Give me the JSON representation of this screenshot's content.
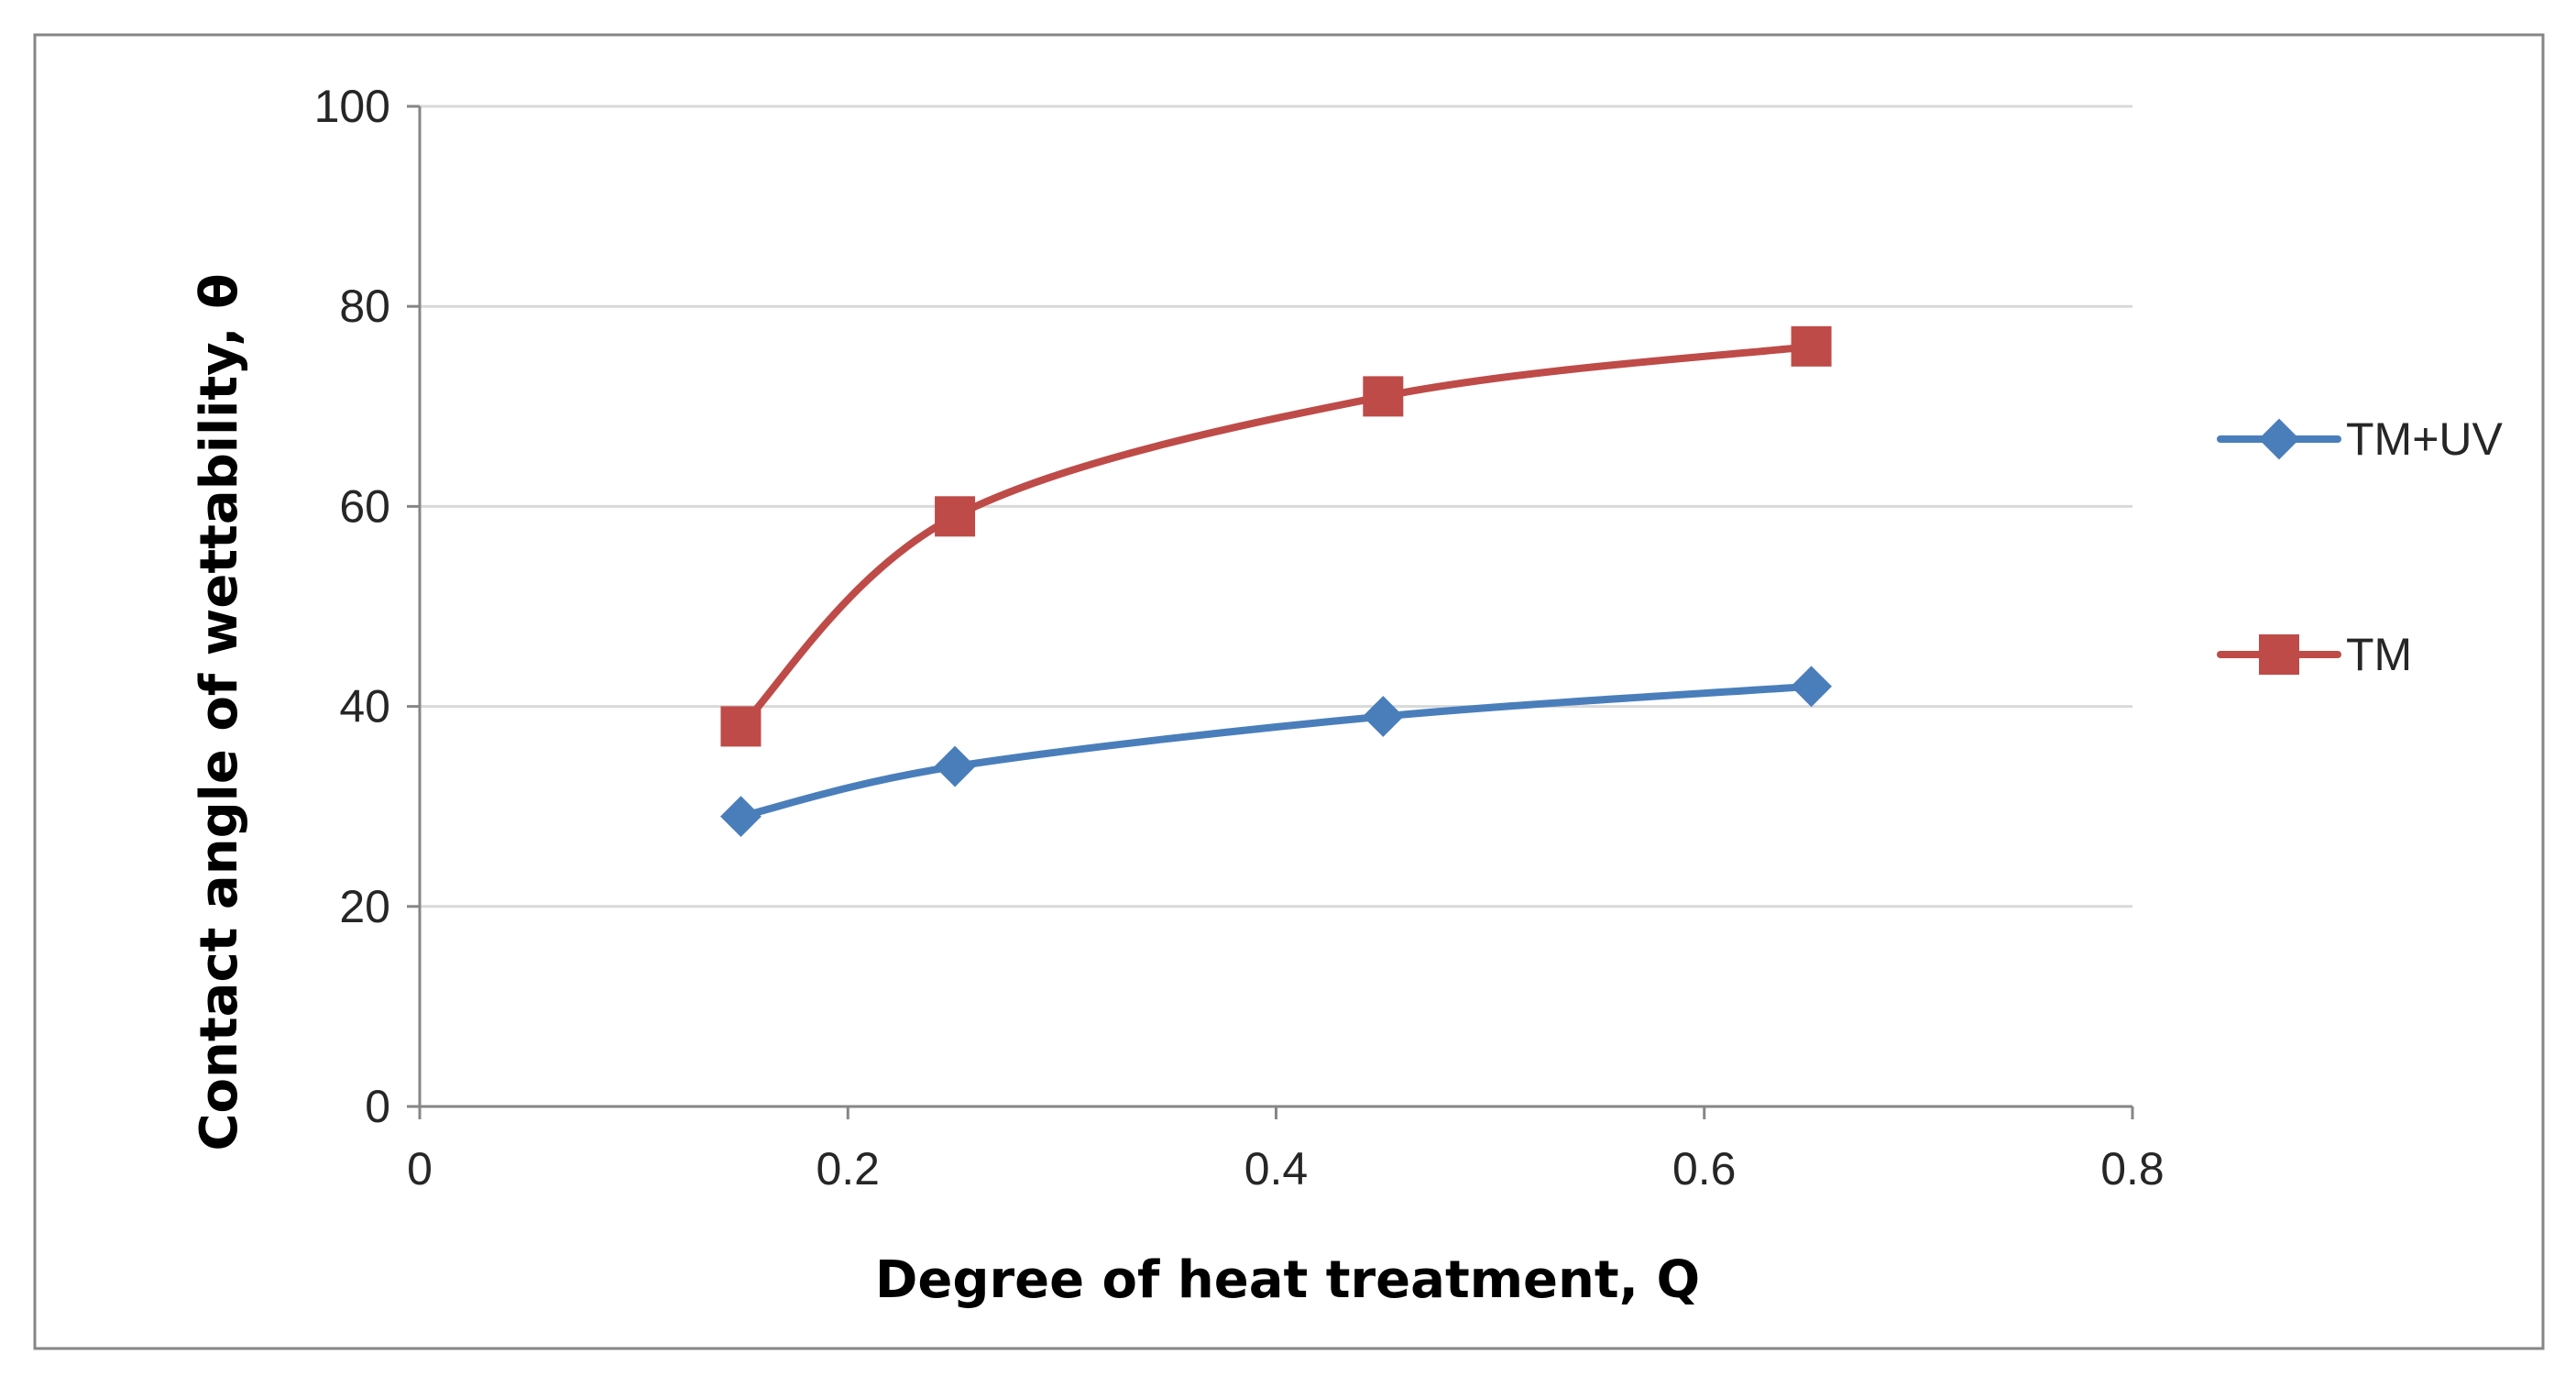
{
  "chart_data": {
    "type": "line",
    "title": "",
    "xlabel": "Degree of heat treatment, Q",
    "ylabel": "Contact angle of wettability, θ",
    "xlim": [
      0,
      0.8
    ],
    "ylim": [
      0,
      100
    ],
    "x_ticks": [
      0,
      0.2,
      0.4,
      0.6,
      0.8
    ],
    "x_tick_labels": [
      "0",
      "0.2",
      "0.4",
      "0.6",
      "0.8"
    ],
    "y_ticks": [
      0,
      20,
      40,
      60,
      80,
      100
    ],
    "y_tick_labels": [
      "0",
      "20",
      "40",
      "60",
      "80",
      "100"
    ],
    "grid": "horizontal",
    "legend_position": "right",
    "smooth": true,
    "series": [
      {
        "name": "TM+UV",
        "marker": "diamond",
        "color": "#4A7EBB",
        "x": [
          0.15,
          0.25,
          0.45,
          0.65
        ],
        "y": [
          29,
          34,
          39,
          42
        ]
      },
      {
        "name": "TM",
        "marker": "square",
        "color": "#BE4B48",
        "x": [
          0.15,
          0.25,
          0.45,
          0.65
        ],
        "y": [
          38,
          59,
          71,
          76
        ]
      }
    ]
  }
}
